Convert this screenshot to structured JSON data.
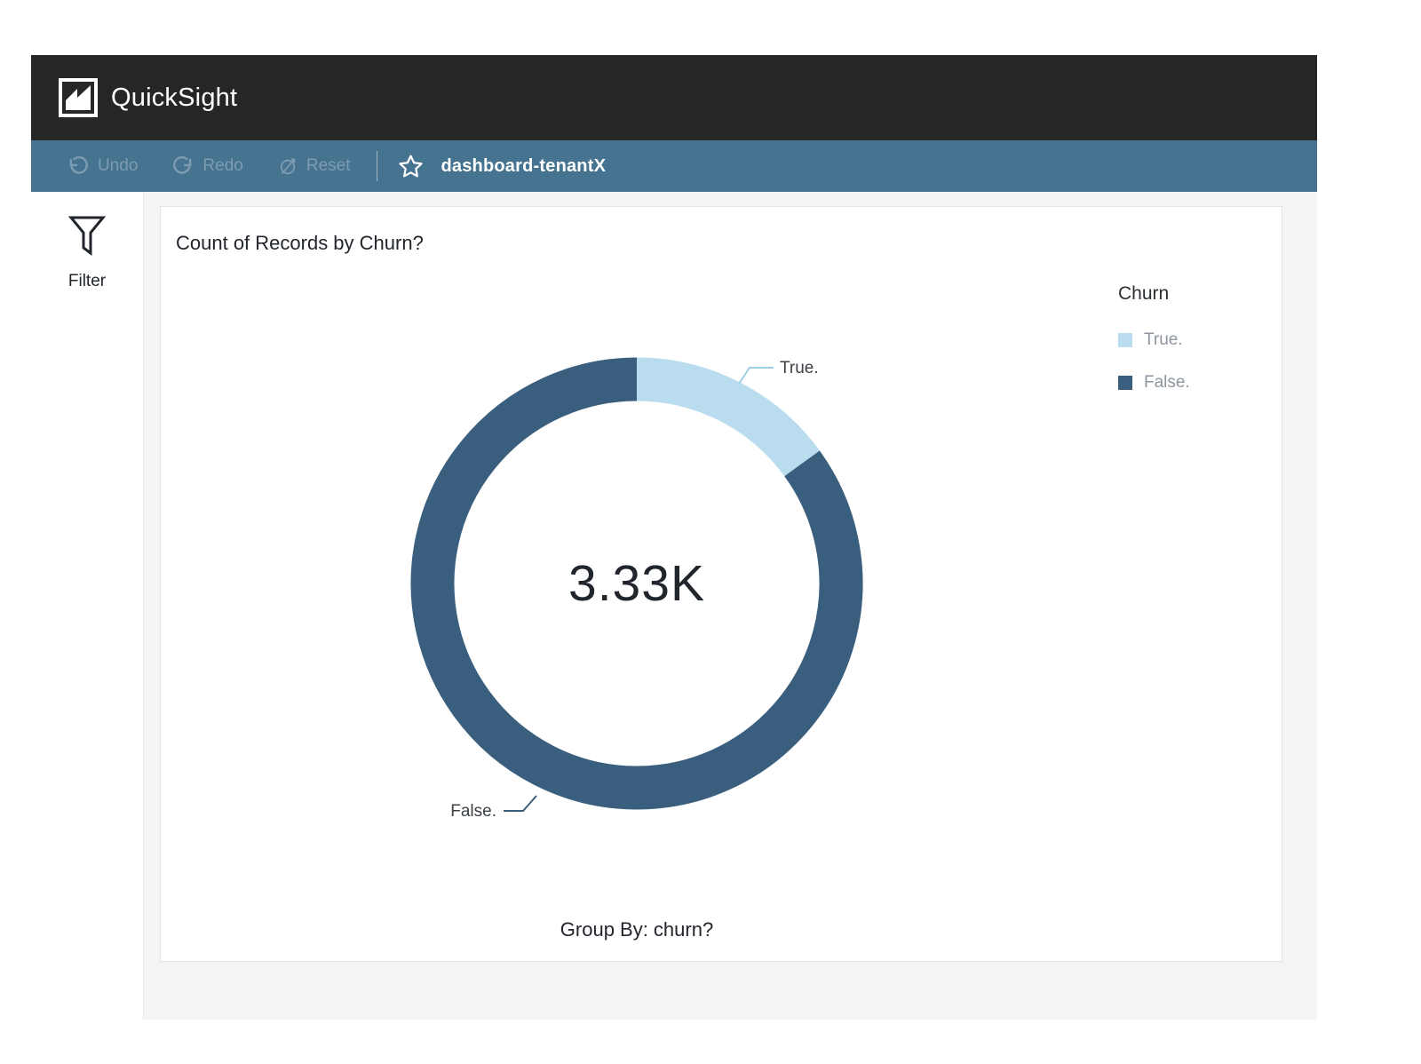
{
  "header": {
    "app_name": "QuickSight"
  },
  "toolbar": {
    "undo_label": "Undo",
    "redo_label": "Redo",
    "reset_label": "Reset",
    "dashboard_title": "dashboard-tenantX"
  },
  "sidebar": {
    "filter_label": "Filter"
  },
  "visual": {
    "title": "Count of Records by Churn?",
    "center_value": "3.33K",
    "footer": "Group By: churn?",
    "legend": {
      "title": "Churn",
      "items": [
        {
          "label": "True.",
          "color": "#b9dcee"
        },
        {
          "label": "False.",
          "color": "#3a5f7e"
        }
      ]
    },
    "callouts": [
      {
        "label": "True."
      },
      {
        "label": "False."
      }
    ]
  },
  "icons": {
    "quicksight-logo": "white square with mountain/zigzag chart mark",
    "undo": "↺",
    "redo": "↻",
    "reset": "circle with diagonal slash arrow",
    "favorite": "☆",
    "filter": "funnel outline"
  },
  "colors": {
    "header_bg": "#262626",
    "toolbar_bg": "#467390",
    "toolbar_disabled_text": "#7d9cb2",
    "canvas_bg": "#f4f4f4",
    "card_bg": "#ffffff",
    "card_border": "#e3e3e3",
    "text_dark": "#21252c",
    "legend_label_gray": "#8d969e",
    "slice_true": "#b9dcee",
    "slice_false": "#3a5f7e",
    "leader_true": "#9ecfe7",
    "leader_false": "#3a5f7e"
  },
  "chart_data": {
    "type": "pie",
    "subtype": "donut",
    "title": "Count of Records by Churn?",
    "legend_title": "Churn",
    "legend_position": "right",
    "center_label": "3.33K",
    "group_by": "Group By: churn?",
    "start_angle_deg": 0,
    "direction": "clockwise",
    "slices": [
      {
        "label": "True.",
        "percent_est": 15,
        "color": "#b9dcee"
      },
      {
        "label": "False.",
        "percent_est": 85,
        "color": "#3a5f7e"
      }
    ]
  }
}
